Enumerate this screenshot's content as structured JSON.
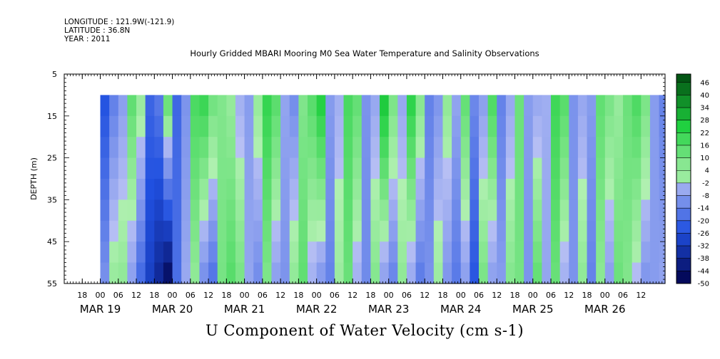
{
  "header": {
    "longitude": "LONGITUDE : 121.9W(-121.9)",
    "latitude": "LATITUDE : 36.8N",
    "year": "YEAR : 2011"
  },
  "chart_data": {
    "type": "heatmap",
    "title": "Hourly Gridded MBARI Mooring M0 Sea Water Temperature and Salinity Observations",
    "variable_title": "U Component of Water Velocity (cm s-1)",
    "ylabel": "DEPTH (m)",
    "ylim": [
      5,
      55
    ],
    "y_inverted": true,
    "yticks": [
      5,
      15,
      25,
      35,
      45,
      55
    ],
    "data_depth_range": [
      10,
      55
    ],
    "x_hours_range": [
      "2011-03-18 12:00",
      "2011-03-26 20:00"
    ],
    "data_time_range": [
      "2011-03-19 00:00",
      "2011-03-26 20:00"
    ],
    "x_hour_ticks": [
      {
        "t": "2011-03-18 18:00",
        "label": "18"
      },
      {
        "t": "2011-03-19 00:00",
        "label": "00"
      },
      {
        "t": "2011-03-19 06:00",
        "label": "06"
      },
      {
        "t": "2011-03-19 12:00",
        "label": "12"
      },
      {
        "t": "2011-03-19 18:00",
        "label": "18"
      },
      {
        "t": "2011-03-20 00:00",
        "label": "00"
      },
      {
        "t": "2011-03-20 06:00",
        "label": "06"
      },
      {
        "t": "2011-03-20 12:00",
        "label": "12"
      },
      {
        "t": "2011-03-20 18:00",
        "label": "18"
      },
      {
        "t": "2011-03-21 00:00",
        "label": "00"
      },
      {
        "t": "2011-03-21 06:00",
        "label": "06"
      },
      {
        "t": "2011-03-21 12:00",
        "label": "12"
      },
      {
        "t": "2011-03-21 18:00",
        "label": "18"
      },
      {
        "t": "2011-03-22 00:00",
        "label": "00"
      },
      {
        "t": "2011-03-22 06:00",
        "label": "06"
      },
      {
        "t": "2011-03-22 12:00",
        "label": "12"
      },
      {
        "t": "2011-03-22 18:00",
        "label": "18"
      },
      {
        "t": "2011-03-23 00:00",
        "label": "00"
      },
      {
        "t": "2011-03-23 06:00",
        "label": "06"
      },
      {
        "t": "2011-03-23 12:00",
        "label": "12"
      },
      {
        "t": "2011-03-23 18:00",
        "label": "18"
      },
      {
        "t": "2011-03-24 00:00",
        "label": "00"
      },
      {
        "t": "2011-03-24 06:00",
        "label": "06"
      },
      {
        "t": "2011-03-24 12:00",
        "label": "12"
      },
      {
        "t": "2011-03-24 18:00",
        "label": "18"
      },
      {
        "t": "2011-03-25 00:00",
        "label": "00"
      },
      {
        "t": "2011-03-25 06:00",
        "label": "06"
      },
      {
        "t": "2011-03-25 12:00",
        "label": "12"
      },
      {
        "t": "2011-03-25 18:00",
        "label": "18"
      },
      {
        "t": "2011-03-26 00:00",
        "label": "00"
      },
      {
        "t": "2011-03-26 06:00",
        "label": "06"
      },
      {
        "t": "2011-03-26 12:00",
        "label": "12"
      }
    ],
    "x_date_labels": [
      {
        "t": "2011-03-19 00:00",
        "label": "MAR 19"
      },
      {
        "t": "2011-03-20 00:00",
        "label": "MAR 20"
      },
      {
        "t": "2011-03-21 00:00",
        "label": "MAR 21"
      },
      {
        "t": "2011-03-22 00:00",
        "label": "MAR 22"
      },
      {
        "t": "2011-03-23 00:00",
        "label": "MAR 23"
      },
      {
        "t": "2011-03-24 00:00",
        "label": "MAR 24"
      },
      {
        "t": "2011-03-25 00:00",
        "label": "MAR 25"
      },
      {
        "t": "2011-03-26 00:00",
        "label": "MAR 26"
      }
    ],
    "colorbar": {
      "levels": [
        -50,
        -44,
        -38,
        -32,
        -26,
        -20,
        -14,
        -8,
        -2,
        4,
        10,
        16,
        22,
        28,
        34,
        40,
        46
      ],
      "range": [
        -50,
        50
      ],
      "colors": {
        "neg_max": "#00004a",
        "neg_mid": "#2050e0",
        "neg_min": "#b8c0f4",
        "zero": "#ffffff",
        "pos_min": "#b0f0b0",
        "pos_mid": "#20d040",
        "pos_max": "#004a10"
      }
    },
    "velocity_profile_hourly_approx": [
      {
        "t": "2011-03-19 00:00",
        "surface": -25,
        "bottom": -10
      },
      {
        "t": "2011-03-19 03:00",
        "surface": -15,
        "bottom": 5
      },
      {
        "t": "2011-03-19 06:00",
        "surface": -8,
        "bottom": 6
      },
      {
        "t": "2011-03-19 09:00",
        "surface": 15,
        "bottom": -8
      },
      {
        "t": "2011-03-19 12:00",
        "surface": 5,
        "bottom": -20
      },
      {
        "t": "2011-03-19 15:00",
        "surface": -20,
        "bottom": -30
      },
      {
        "t": "2011-03-19 18:00",
        "surface": -15,
        "bottom": -38
      },
      {
        "t": "2011-03-19 21:00",
        "surface": 15,
        "bottom": -48
      },
      {
        "t": "2011-03-20 00:00",
        "surface": -20,
        "bottom": -18
      },
      {
        "t": "2011-03-20 03:00",
        "surface": -10,
        "bottom": -5
      },
      {
        "t": "2011-03-20 06:00",
        "surface": 18,
        "bottom": 5
      },
      {
        "t": "2011-03-20 09:00",
        "surface": 22,
        "bottom": -12
      },
      {
        "t": "2011-03-20 12:00",
        "surface": 12,
        "bottom": -18
      },
      {
        "t": "2011-03-20 15:00",
        "surface": 8,
        "bottom": 10
      },
      {
        "t": "2011-03-20 18:00",
        "surface": 4,
        "bottom": 16
      },
      {
        "t": "2011-03-20 21:00",
        "surface": -4,
        "bottom": 10
      },
      {
        "t": "2011-03-21 00:00",
        "surface": -8,
        "bottom": -6
      },
      {
        "t": "2011-03-21 03:00",
        "surface": 5,
        "bottom": -12
      },
      {
        "t": "2011-03-21 06:00",
        "surface": 22,
        "bottom": 8
      },
      {
        "t": "2011-03-21 09:00",
        "surface": 16,
        "bottom": -8
      },
      {
        "t": "2011-03-21 12:00",
        "surface": -6,
        "bottom": -10
      },
      {
        "t": "2011-03-21 15:00",
        "surface": -12,
        "bottom": 6
      },
      {
        "t": "2011-03-21 18:00",
        "surface": 8,
        "bottom": 14
      },
      {
        "t": "2011-03-21 21:00",
        "surface": 16,
        "bottom": -4
      },
      {
        "t": "2011-03-22 00:00",
        "surface": 26,
        "bottom": -10
      },
      {
        "t": "2011-03-22 03:00",
        "surface": -8,
        "bottom": -14
      },
      {
        "t": "2011-03-22 06:00",
        "surface": -4,
        "bottom": 4
      },
      {
        "t": "2011-03-22 09:00",
        "surface": 18,
        "bottom": 12
      },
      {
        "t": "2011-03-22 12:00",
        "surface": 14,
        "bottom": -4
      },
      {
        "t": "2011-03-22 15:00",
        "surface": -10,
        "bottom": -12
      },
      {
        "t": "2011-03-22 18:00",
        "surface": -6,
        "bottom": 8
      },
      {
        "t": "2011-03-22 21:00",
        "surface": 28,
        "bottom": -8
      },
      {
        "t": "2011-03-23 00:00",
        "surface": 10,
        "bottom": -14
      },
      {
        "t": "2011-03-23 03:00",
        "surface": -6,
        "bottom": 6
      },
      {
        "t": "2011-03-23 06:00",
        "surface": 24,
        "bottom": -6
      },
      {
        "t": "2011-03-23 09:00",
        "surface": 8,
        "bottom": -16
      },
      {
        "t": "2011-03-23 12:00",
        "surface": -14,
        "bottom": -10
      },
      {
        "t": "2011-03-23 15:00",
        "surface": -10,
        "bottom": 4
      },
      {
        "t": "2011-03-23 18:00",
        "surface": 6,
        "bottom": -10
      },
      {
        "t": "2011-03-23 21:00",
        "surface": -6,
        "bottom": -16
      },
      {
        "t": "2011-03-24 00:00",
        "surface": 14,
        "bottom": -8
      },
      {
        "t": "2011-03-24 03:00",
        "surface": -12,
        "bottom": -24
      },
      {
        "t": "2011-03-24 06:00",
        "surface": -8,
        "bottom": 10
      },
      {
        "t": "2011-03-24 09:00",
        "surface": 18,
        "bottom": -8
      },
      {
        "t": "2011-03-24 12:00",
        "surface": -14,
        "bottom": -8
      },
      {
        "t": "2011-03-24 15:00",
        "surface": -6,
        "bottom": 8
      },
      {
        "t": "2011-03-24 18:00",
        "surface": 12,
        "bottom": 10
      },
      {
        "t": "2011-03-24 21:00",
        "surface": -8,
        "bottom": -10
      },
      {
        "t": "2011-03-25 00:00",
        "surface": -6,
        "bottom": 14
      },
      {
        "t": "2011-03-25 03:00",
        "surface": -4,
        "bottom": -6
      },
      {
        "t": "2011-03-25 06:00",
        "surface": 20,
        "bottom": 12
      },
      {
        "t": "2011-03-25 09:00",
        "surface": 16,
        "bottom": -4
      },
      {
        "t": "2011-03-25 12:00",
        "surface": -10,
        "bottom": -10
      },
      {
        "t": "2011-03-25 15:00",
        "surface": -6,
        "bottom": 6
      },
      {
        "t": "2011-03-25 18:00",
        "surface": -8,
        "bottom": -14
      },
      {
        "t": "2011-03-25 21:00",
        "surface": 14,
        "bottom": 6
      },
      {
        "t": "2011-03-26 00:00",
        "surface": 10,
        "bottom": -8
      },
      {
        "t": "2011-03-26 03:00",
        "surface": 4,
        "bottom": 12
      },
      {
        "t": "2011-03-26 06:00",
        "surface": 12,
        "bottom": 8
      },
      {
        "t": "2011-03-26 09:00",
        "surface": 18,
        "bottom": -2
      },
      {
        "t": "2011-03-26 12:00",
        "surface": 10,
        "bottom": -10
      },
      {
        "t": "2011-03-26 15:00",
        "surface": -8,
        "bottom": -8
      },
      {
        "t": "2011-03-26 18:00",
        "surface": -14,
        "bottom": -6
      },
      {
        "t": "2011-03-26 20:00",
        "surface": -6,
        "bottom": -4
      }
    ]
  }
}
